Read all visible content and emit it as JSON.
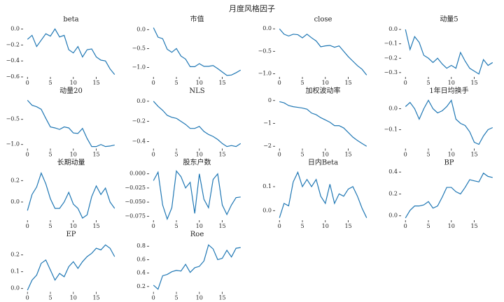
{
  "title": "月度风格因子",
  "chart_data": [
    {
      "type": "line",
      "title": "beta",
      "color": "#1f77b4",
      "x": [
        0,
        1,
        2,
        3,
        4,
        5,
        6,
        7,
        8,
        9,
        10,
        11,
        12,
        13,
        14,
        15,
        16,
        17,
        18,
        19
      ],
      "values": [
        -0.13,
        -0.08,
        -0.22,
        -0.14,
        -0.06,
        -0.09,
        0.0,
        -0.1,
        -0.08,
        -0.26,
        -0.3,
        -0.22,
        -0.35,
        -0.26,
        -0.25,
        -0.35,
        -0.39,
        -0.4,
        -0.5,
        -0.57
      ],
      "xlim": [
        -0.95,
        19.95
      ],
      "ylim": [
        -0.6,
        0.03
      ],
      "xticks": [
        0,
        5,
        10,
        15
      ],
      "yticks": [
        {
          "value": 0,
          "label": "0.0"
        },
        {
          "value": -0.2,
          "label": "−0.2"
        },
        {
          "value": -0.4,
          "label": "−0.4"
        },
        {
          "value": -0.6,
          "label": "−0.6"
        }
      ]
    },
    {
      "type": "line",
      "title": "市值",
      "color": "#1f77b4",
      "x": [
        0,
        1,
        2,
        3,
        4,
        5,
        6,
        7,
        8,
        9,
        10,
        11,
        12,
        13,
        14,
        15,
        16,
        17,
        18,
        19
      ],
      "values": [
        0.05,
        -0.2,
        -0.24,
        -0.52,
        -0.6,
        -0.5,
        -0.7,
        -0.78,
        -0.98,
        -0.98,
        -0.9,
        -0.97,
        -0.97,
        -0.95,
        -1.03,
        -1.12,
        -1.21,
        -1.2,
        -1.14,
        -1.07
      ],
      "xlim": [
        -0.95,
        19.95
      ],
      "ylim": [
        -1.25,
        0.08
      ],
      "xticks": [
        0,
        5,
        10,
        15
      ],
      "yticks": [
        {
          "value": 0,
          "label": "0.0"
        },
        {
          "value": -0.5,
          "label": "−0.5"
        },
        {
          "value": -1,
          "label": "−1.0"
        }
      ]
    },
    {
      "type": "line",
      "title": "close",
      "color": "#1f77b4",
      "x": [
        0,
        1,
        2,
        3,
        4,
        5,
        6,
        7,
        8,
        9,
        10,
        11,
        12,
        13,
        14,
        15,
        16,
        17,
        18,
        19
      ],
      "values": [
        0.0,
        -0.12,
        -0.16,
        -0.12,
        -0.13,
        -0.2,
        -0.12,
        -0.2,
        -0.27,
        -0.4,
        -0.38,
        -0.37,
        -0.41,
        -0.38,
        -0.5,
        -0.62,
        -0.72,
        -0.82,
        -0.9,
        -1.03
      ],
      "xlim": [
        -0.95,
        19.95
      ],
      "ylim": [
        -1.07,
        0.05
      ],
      "xticks": [
        0,
        5,
        10,
        15
      ],
      "yticks": [
        {
          "value": 0,
          "label": "0.0"
        },
        {
          "value": -0.5,
          "label": "−0.5"
        },
        {
          "value": -1,
          "label": "−1.0"
        }
      ]
    },
    {
      "type": "line",
      "title": "动量5",
      "color": "#1f77b4",
      "x": [
        0,
        1,
        2,
        3,
        4,
        5,
        6,
        7,
        8,
        9,
        10,
        11,
        12,
        13,
        14,
        15,
        16,
        17,
        18,
        19
      ],
      "values": [
        0.0,
        -0.14,
        -0.05,
        -0.09,
        -0.18,
        -0.2,
        -0.23,
        -0.2,
        -0.24,
        -0.27,
        -0.25,
        -0.27,
        -0.16,
        -0.22,
        -0.27,
        -0.29,
        -0.31,
        -0.21,
        -0.25,
        -0.23
      ],
      "xlim": [
        -0.95,
        19.95
      ],
      "ylim": [
        -0.33,
        0.02
      ],
      "xticks": [
        0,
        5,
        10,
        15
      ],
      "yticks": [
        {
          "value": 0,
          "label": "0.0"
        },
        {
          "value": -0.1,
          "label": "−0.1"
        },
        {
          "value": -0.2,
          "label": "−0.2"
        },
        {
          "value": -0.3,
          "label": "−0.3"
        }
      ]
    },
    {
      "type": "line",
      "title": "动量20",
      "color": "#1f77b4",
      "x": [
        0,
        1,
        2,
        3,
        4,
        5,
        6,
        7,
        8,
        9,
        10,
        11,
        12,
        13,
        14,
        15,
        16,
        17,
        18,
        19
      ],
      "values": [
        -0.12,
        -0.22,
        -0.25,
        -0.3,
        -0.48,
        -0.65,
        -0.67,
        -0.7,
        -0.65,
        -0.67,
        -0.77,
        -0.78,
        -0.68,
        -0.88,
        -1.04,
        -1.04,
        -1.0,
        -1.04,
        -1.03,
        -1.01
      ],
      "xlim": [
        -0.95,
        19.95
      ],
      "ylim": [
        -1.08,
        -0.08
      ],
      "xticks": [
        0,
        5,
        10,
        15
      ],
      "yticks": [
        {
          "value": -0.5,
          "label": "−0.5"
        },
        {
          "value": -1,
          "label": "−1.0"
        }
      ]
    },
    {
      "type": "line",
      "title": "NLS",
      "color": "#1f77b4",
      "x": [
        0,
        1,
        2,
        3,
        4,
        5,
        6,
        7,
        8,
        9,
        10,
        11,
        12,
        13,
        14,
        15,
        16,
        17,
        18,
        19
      ],
      "values": [
        0.0,
        -0.05,
        -0.09,
        -0.14,
        -0.16,
        -0.17,
        -0.2,
        -0.23,
        -0.27,
        -0.27,
        -0.25,
        -0.3,
        -0.33,
        -0.35,
        -0.38,
        -0.42,
        -0.45,
        -0.44,
        -0.45,
        -0.42
      ],
      "xlim": [
        -0.95,
        19.95
      ],
      "ylim": [
        -0.47,
        0.03
      ],
      "xticks": [
        0,
        5,
        10,
        15
      ],
      "yticks": [
        {
          "value": 0,
          "label": "0.0"
        },
        {
          "value": -0.2,
          "label": "−0.2"
        },
        {
          "value": -0.4,
          "label": "−0.4"
        }
      ]
    },
    {
      "type": "line",
      "title": "加权波动率",
      "color": "#1f77b4",
      "x": [
        0,
        1,
        2,
        3,
        4,
        5,
        6,
        7,
        8,
        9,
        10,
        11,
        12,
        13,
        14,
        15,
        16,
        17,
        18,
        19
      ],
      "values": [
        -0.05,
        -0.1,
        -0.22,
        -0.27,
        -0.3,
        -0.33,
        -0.38,
        -0.55,
        -0.62,
        -0.75,
        -0.85,
        -0.95,
        -1.1,
        -1.1,
        -1.2,
        -1.4,
        -1.6,
        -1.75,
        -1.88,
        -2.0
      ],
      "xlim": [
        -0.95,
        19.95
      ],
      "ylim": [
        -2.1,
        0.1
      ],
      "xticks": [
        0,
        5,
        10,
        15
      ],
      "yticks": [
        0,
        {
          "value": -1,
          "label": "−1"
        },
        {
          "value": -2,
          "label": "−2"
        }
      ]
    },
    {
      "type": "line",
      "title": "1年日均换手",
      "color": "#1f77b4",
      "x": [
        0,
        1,
        2,
        3,
        4,
        5,
        6,
        7,
        8,
        9,
        10,
        11,
        12,
        13,
        14,
        15,
        16,
        17,
        18,
        19
      ],
      "values": [
        0.01,
        0.03,
        0.0,
        -0.05,
        0.0,
        0.04,
        0.0,
        -0.02,
        -0.01,
        0.01,
        0.04,
        -0.05,
        -0.07,
        -0.08,
        -0.11,
        -0.16,
        -0.17,
        -0.13,
        -0.1,
        -0.09
      ],
      "xlim": [
        -0.95,
        19.95
      ],
      "ylim": [
        -0.19,
        0.05
      ],
      "xticks": [
        0,
        5,
        10,
        15
      ],
      "yticks": [
        {
          "value": 0,
          "label": "0.0"
        },
        {
          "value": -0.1,
          "label": "−0.1"
        }
      ]
    },
    {
      "type": "line",
      "title": "长期动量",
      "color": "#1f77b4",
      "x": [
        0,
        1,
        2,
        3,
        4,
        5,
        6,
        7,
        8,
        9,
        10,
        11,
        12,
        13,
        14,
        15,
        16,
        17,
        18,
        19
      ],
      "values": [
        -0.08,
        0.07,
        0.14,
        0.27,
        0.17,
        0.03,
        -0.06,
        -0.06,
        0.0,
        0.09,
        -0.02,
        -0.06,
        -0.15,
        -0.12,
        0.05,
        0.15,
        0.07,
        0.13,
        0.0,
        -0.06
      ],
      "xlim": [
        -0.95,
        19.95
      ],
      "ylim": [
        -0.17,
        0.3
      ],
      "xticks": [
        0,
        5,
        10,
        15
      ],
      "yticks": [
        {
          "value": 0,
          "label": "0.0"
        },
        0.2
      ]
    },
    {
      "type": "line",
      "title": "股东户数",
      "color": "#1f77b4",
      "x": [
        0,
        1,
        2,
        3,
        4,
        5,
        6,
        7,
        8,
        9,
        10,
        11,
        12,
        13,
        14,
        15,
        16,
        17,
        18,
        19
      ],
      "values": [
        -0.012,
        0.003,
        -0.055,
        -0.08,
        -0.06,
        0.005,
        -0.005,
        -0.025,
        -0.015,
        -0.07,
        0.0,
        -0.045,
        -0.06,
        -0.01,
        0.0,
        -0.055,
        -0.072,
        -0.055,
        -0.042,
        -0.041
      ],
      "xlim": [
        -0.95,
        19.95
      ],
      "ylim": [
        -0.082,
        0.007
      ],
      "xticks": [
        0,
        5,
        10,
        15
      ],
      "yticks": [
        {
          "value": 0,
          "label": "0.000"
        },
        {
          "value": -0.025,
          "label": "−0.025"
        },
        {
          "value": -0.05,
          "label": "−0.050"
        },
        {
          "value": -0.075,
          "label": "−0.075"
        }
      ]
    },
    {
      "type": "line",
      "title": "日内Beta",
      "color": "#1f77b4",
      "x": [
        0,
        1,
        2,
        3,
        4,
        5,
        6,
        7,
        8,
        9,
        10,
        11,
        12,
        13,
        14,
        15,
        16,
        17,
        18,
        19
      ],
      "values": [
        -0.03,
        0.03,
        0.02,
        0.12,
        0.16,
        0.1,
        0.13,
        0.1,
        0.13,
        0.06,
        0.03,
        0.11,
        0.03,
        0.07,
        0.06,
        0.09,
        0.1,
        0.06,
        0.01,
        -0.03
      ],
      "xlim": [
        -0.95,
        19.95
      ],
      "ylim": [
        -0.04,
        0.17
      ],
      "xticks": [
        0,
        5,
        10,
        15
      ],
      "yticks": [
        {
          "value": 0,
          "label": "0.0"
        },
        0.1
      ]
    },
    {
      "type": "line",
      "title": "BP",
      "color": "#1f77b4",
      "x": [
        0,
        1,
        2,
        3,
        4,
        5,
        6,
        7,
        8,
        9,
        10,
        11,
        12,
        13,
        14,
        15,
        16,
        17,
        18,
        19
      ],
      "values": [
        -0.02,
        0.05,
        0.09,
        0.09,
        0.1,
        0.13,
        0.07,
        0.09,
        0.17,
        0.26,
        0.26,
        0.22,
        0.2,
        0.26,
        0.33,
        0.32,
        0.31,
        0.39,
        0.36,
        0.35
      ],
      "xlim": [
        -0.95,
        19.95
      ],
      "ylim": [
        -0.04,
        0.42
      ],
      "xticks": [
        0,
        5,
        10,
        15
      ],
      "yticks": [
        {
          "value": 0,
          "label": "0.0"
        },
        0.2,
        0.4
      ]
    },
    {
      "type": "line",
      "title": "EP",
      "color": "#1f77b4",
      "x": [
        0,
        1,
        2,
        3,
        4,
        5,
        6,
        7,
        8,
        9,
        10,
        11,
        12,
        13,
        14,
        15,
        16,
        17,
        18,
        19
      ],
      "values": [
        -0.01,
        0.05,
        0.08,
        0.15,
        0.17,
        0.11,
        0.05,
        0.09,
        0.07,
        0.13,
        0.16,
        0.12,
        0.16,
        0.19,
        0.21,
        0.24,
        0.23,
        0.26,
        0.24,
        0.19
      ],
      "xlim": [
        -0.95,
        19.95
      ],
      "ylim": [
        -0.02,
        0.28
      ],
      "xticks": [
        0,
        5,
        10,
        15
      ],
      "yticks": [
        {
          "value": 0,
          "label": "0.0"
        },
        0.1,
        0.2
      ]
    },
    {
      "type": "line",
      "title": "Roe",
      "color": "#1f77b4",
      "x": [
        0,
        1,
        2,
        3,
        4,
        5,
        6,
        7,
        8,
        9,
        10,
        11,
        12,
        13,
        14,
        15,
        16,
        17,
        18,
        19
      ],
      "values": [
        0.22,
        0.16,
        0.36,
        0.38,
        0.42,
        0.44,
        0.43,
        0.53,
        0.41,
        0.48,
        0.5,
        0.58,
        0.82,
        0.76,
        0.6,
        0.62,
        0.74,
        0.64,
        0.77,
        0.78
      ],
      "xlim": [
        -0.95,
        19.95
      ],
      "ylim": [
        0.12,
        0.87
      ],
      "xticks": [
        0,
        5,
        10,
        15
      ],
      "yticks": [
        0.2,
        0.4,
        0.6,
        0.8
      ]
    }
  ]
}
